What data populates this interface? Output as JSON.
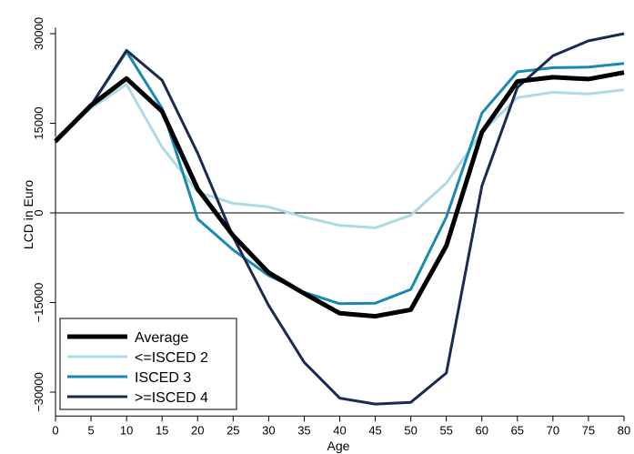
{
  "chart_data": {
    "type": "line",
    "xlabel": "Age",
    "ylabel": "LCD in Euro",
    "xlim": [
      0,
      80
    ],
    "ylim": [
      -34000,
      31000
    ],
    "x_ticks": [
      0,
      5,
      10,
      15,
      20,
      25,
      30,
      35,
      40,
      45,
      50,
      55,
      60,
      65,
      70,
      75,
      80
    ],
    "y_ticks": [
      -30000,
      -15000,
      0,
      15000,
      30000
    ],
    "reference_line_y": 0,
    "grid": false,
    "legend_position": "bottom-left",
    "x": [
      0,
      5,
      10,
      15,
      20,
      25,
      30,
      35,
      40,
      45,
      50,
      55,
      60,
      65,
      70,
      75,
      80
    ],
    "series": [
      {
        "name": "Average",
        "color": "#000000",
        "width": 5,
        "values": [
          12000,
          18000,
          22500,
          17000,
          4000,
          -3800,
          -10000,
          -13500,
          -16800,
          -17300,
          -16200,
          -5500,
          13500,
          22000,
          22700,
          22400,
          23500
        ]
      },
      {
        "name": "<=ISCED 2",
        "color": "#aedbe3",
        "width": 3,
        "values": [
          12500,
          17500,
          21500,
          11000,
          3500,
          1600,
          1000,
          -700,
          -2100,
          -2500,
          -400,
          5000,
          13500,
          19300,
          20200,
          19900,
          20600
        ]
      },
      {
        "name": "ISCED 3",
        "color": "#1789b3",
        "width": 3,
        "values": [
          12200,
          18000,
          27000,
          17500,
          -1000,
          -6200,
          -10500,
          -13300,
          -15200,
          -15100,
          -12800,
          -700,
          16700,
          23600,
          24300,
          24400,
          25000
        ]
      },
      {
        "name": ">=ISCED 4",
        "color": "#1b2a52",
        "width": 3,
        "values": [
          11800,
          18000,
          27200,
          22200,
          10000,
          -4000,
          -15500,
          -25000,
          -31000,
          -32000,
          -31700,
          -26800,
          4500,
          21000,
          26300,
          28800,
          30000
        ]
      }
    ]
  }
}
